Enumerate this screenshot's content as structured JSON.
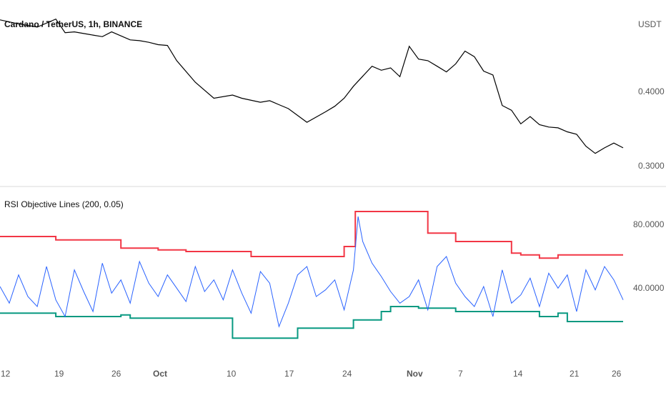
{
  "main_chart": {
    "title": "Cardano / TetherUS, 1h, BINANCE",
    "currency": "USDT",
    "y_ticks": [
      "0.4000",
      "0.3000"
    ]
  },
  "indicator": {
    "title": "RSI Objective Lines (200, 0.05)",
    "y_ticks": [
      "80.0000",
      "40.0000"
    ]
  },
  "x_ticks": [
    "12",
    "19",
    "26",
    "Oct",
    "10",
    "17",
    "24",
    "Nov",
    "7",
    "14",
    "21",
    "26"
  ],
  "colors": {
    "price": "#000000",
    "rsi": "#2962ff",
    "upper": "#f23645",
    "lower": "#089981",
    "separator": "#d8d8d8"
  },
  "chart_data": [
    {
      "type": "line",
      "title": "Cardano / TetherUS, 1h, BINANCE",
      "ylabel": "USDT",
      "ylim": [
        0.28,
        0.49
      ],
      "x": [
        0,
        2,
        4,
        6,
        7,
        8,
        9,
        10,
        11,
        12,
        13,
        14,
        15,
        16,
        17,
        18,
        19,
        21,
        23,
        25,
        26,
        28,
        29,
        30,
        31,
        33,
        35,
        36,
        37,
        38,
        40,
        41,
        42,
        43,
        44,
        45,
        46,
        47,
        48,
        49,
        50,
        51,
        52,
        53,
        54,
        55,
        56,
        57,
        58,
        59,
        60,
        61,
        62,
        63,
        64,
        65,
        66,
        67
      ],
      "values": [
        0.483,
        0.478,
        0.474,
        0.484,
        0.467,
        0.468,
        0.466,
        0.464,
        0.462,
        0.468,
        0.463,
        0.458,
        0.457,
        0.455,
        0.452,
        0.451,
        0.432,
        0.405,
        0.385,
        0.389,
        0.385,
        0.38,
        0.382,
        0.377,
        0.372,
        0.355,
        0.368,
        0.375,
        0.385,
        0.4,
        0.425,
        0.42,
        0.423,
        0.412,
        0.45,
        0.434,
        0.432,
        0.425,
        0.418,
        0.428,
        0.444,
        0.437,
        0.419,
        0.414,
        0.376,
        0.37,
        0.353,
        0.362,
        0.352,
        0.349,
        0.348,
        0.343,
        0.34,
        0.325,
        0.316,
        0.323,
        0.329,
        0.323
      ]
    },
    {
      "type": "line",
      "title": "RSI Objective Lines (200, 0.05)",
      "ylim": [
        12,
        102
      ],
      "series": [
        {
          "x": [
            0,
            1,
            2,
            3,
            4,
            5,
            6,
            7,
            8,
            9,
            10,
            11,
            12,
            13,
            14,
            15,
            16,
            17,
            18,
            19,
            20,
            21,
            22,
            23,
            24,
            25,
            26,
            27,
            28,
            29,
            30,
            31,
            32,
            33,
            34,
            35,
            36,
            37,
            38,
            38.5,
            39,
            40,
            41,
            42,
            43,
            44,
            45,
            46,
            47,
            48,
            49,
            50,
            51,
            52,
            53,
            54,
            55,
            56,
            57,
            58,
            59,
            60,
            61,
            62,
            63,
            64,
            65,
            66,
            67
          ],
          "values": [
            48,
            38,
            55,
            42,
            36,
            60,
            40,
            30,
            58,
            45,
            33,
            62,
            44,
            52,
            38,
            63,
            50,
            42,
            55,
            47,
            39,
            60,
            45,
            52,
            40,
            58,
            44,
            32,
            57,
            50,
            24,
            38,
            55,
            60,
            42,
            46,
            52,
            34,
            58,
            90,
            75,
            62,
            54,
            45,
            38,
            42,
            52,
            34,
            60,
            66,
            50,
            42,
            36,
            48,
            30,
            58,
            38,
            43,
            53,
            36,
            56,
            47,
            55,
            33,
            58,
            46,
            60,
            52,
            40
          ]
        },
        {
          "x": [
            0,
            6,
            6,
            13,
            13,
            17,
            17,
            20,
            20,
            27,
            27,
            37,
            37,
            38.2,
            38.2,
            46,
            46,
            49,
            49,
            55,
            55,
            56,
            56,
            58,
            58,
            60,
            60,
            67
          ],
          "values": [
            78,
            78,
            76,
            76,
            71,
            71,
            70,
            70,
            69,
            69,
            66,
            66,
            72,
            72,
            93,
            93,
            80,
            80,
            75,
            75,
            68,
            68,
            67,
            67,
            65,
            65,
            67,
            67
          ]
        },
        {
          "x": [
            0,
            6,
            6,
            13,
            13,
            14,
            14,
            25,
            25,
            32,
            32,
            38,
            38,
            41,
            41,
            42,
            42,
            45,
            45,
            49,
            49,
            58,
            58,
            60,
            60,
            61,
            61,
            67
          ],
          "values": [
            32,
            32,
            30,
            30,
            31,
            31,
            29,
            29,
            17,
            17,
            23,
            23,
            28,
            28,
            33,
            33,
            36,
            36,
            35,
            35,
            33,
            33,
            30,
            30,
            32,
            32,
            27,
            27
          ]
        }
      ]
    }
  ]
}
